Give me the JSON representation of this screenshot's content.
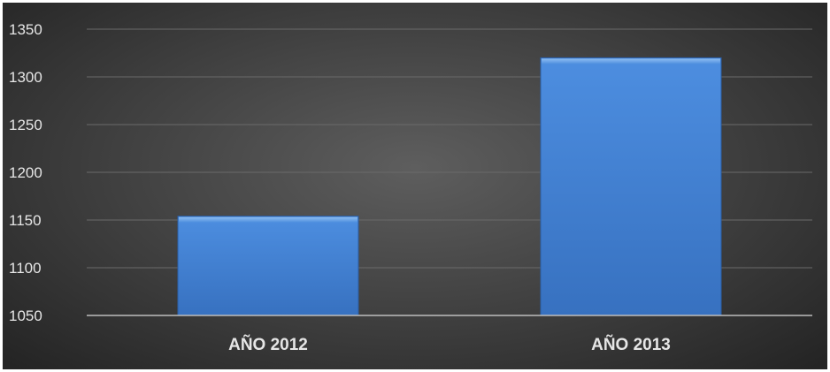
{
  "chart_data": {
    "type": "bar",
    "categories": [
      "AÑO 2012",
      "AÑO 2013"
    ],
    "values": [
      1154,
      1320
    ],
    "ylim": [
      1050,
      1350
    ],
    "yticks": [
      1050,
      1100,
      1150,
      1200,
      1250,
      1300,
      1350
    ],
    "grid": true,
    "legend": "none",
    "colors": {
      "bar": "#3f7fd0",
      "bar_top": "#5d9be6",
      "grid": "#6a6a6a",
      "axis": "#bdbdbd",
      "text": "#e6e6e6"
    }
  }
}
